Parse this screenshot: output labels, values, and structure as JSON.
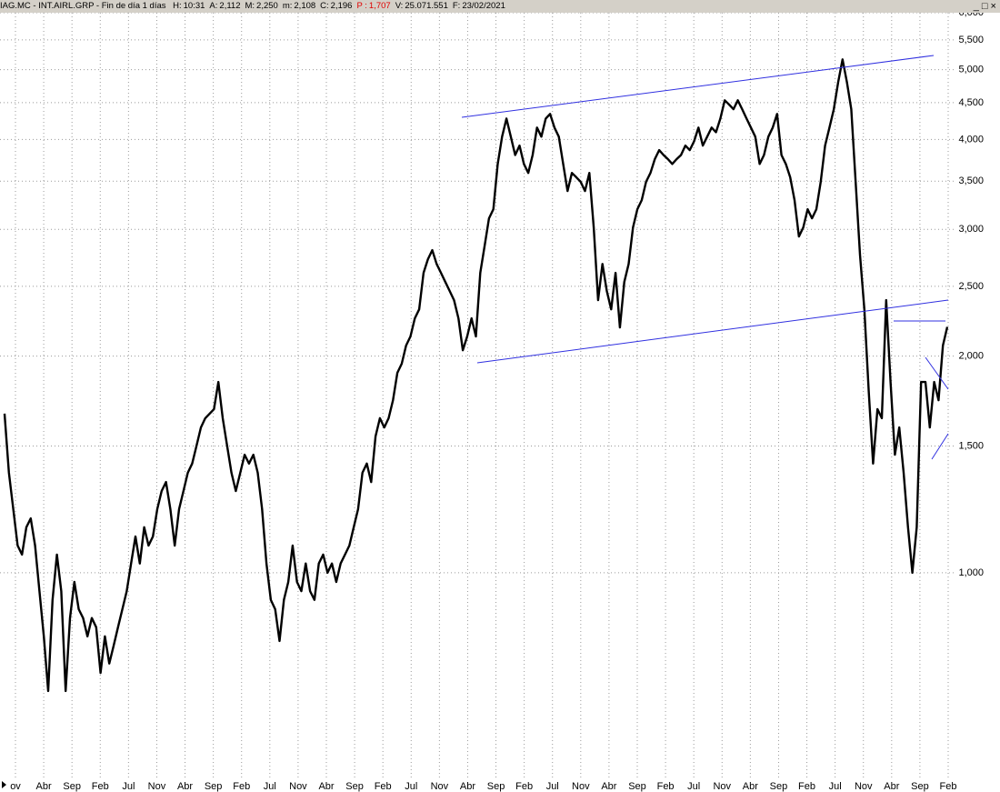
{
  "header": {
    "symbol": "IAG.MC - INT.AIRL.GRP - Fin de día 1 días",
    "fields": [
      {
        "label": "H:",
        "value": "10:31"
      },
      {
        "label": "A:",
        "value": "2,112"
      },
      {
        "label": "M:",
        "value": "2,250"
      },
      {
        "label": "m:",
        "value": "2,108"
      },
      {
        "label": "C:",
        "value": "2,196"
      },
      {
        "label": "P :",
        "value": "1,707",
        "color": "#e00000"
      },
      {
        "label": "V:",
        "value": "25.071.551"
      },
      {
        "label": "F:",
        "value": "23/02/2021"
      }
    ]
  },
  "chart_data": {
    "type": "line",
    "log_scale": true,
    "color": "#000000",
    "grid": true,
    "ylim": [
      515,
      6000
    ],
    "yticks": [
      {
        "value": 1000,
        "label": "1,000"
      },
      {
        "value": 1500,
        "label": "1,500"
      },
      {
        "value": 2000,
        "label": "2,000"
      },
      {
        "value": 2500,
        "label": "2,500"
      },
      {
        "value": 3000,
        "label": "3,000"
      },
      {
        "value": 3500,
        "label": "3,500"
      },
      {
        "value": 4000,
        "label": "4,000"
      },
      {
        "value": 4500,
        "label": "4,500"
      },
      {
        "value": 5000,
        "label": "5,000"
      },
      {
        "value": 5500,
        "label": "5,500"
      },
      {
        "value": 6000,
        "label": "6,000"
      }
    ],
    "xtick_labels": [
      "ov",
      "Abr",
      "Sep",
      "Feb",
      "Jul",
      "Nov",
      "Abr",
      "Sep",
      "Feb",
      "Jul",
      "Nov",
      "Abr",
      "Sep",
      "Feb",
      "Jul",
      "Nov",
      "Abr",
      "Sep",
      "Feb",
      "Jul",
      "Nov",
      "Abr",
      "Sep",
      "Feb",
      "Jul",
      "Nov",
      "Abr",
      "Sep",
      "Feb",
      "Jul",
      "Nov",
      "Abr",
      "Sep",
      "Feb"
    ],
    "values": [
      1664,
      1377,
      1226,
      1091,
      1060,
      1157,
      1190,
      1091,
      943,
      816,
      685,
      917,
      1060,
      943,
      685,
      865,
      971,
      890,
      865,
      816,
      865,
      840,
      726,
      816,
      748,
      792,
      840,
      890,
      943,
      1030,
      1123,
      1030,
      1157,
      1091,
      1123,
      1226,
      1299,
      1337,
      1226,
      1091,
      1226,
      1299,
      1377,
      1418,
      1502,
      1592,
      1640,
      1664,
      1688,
      1841,
      1640,
      1502,
      1377,
      1299,
      1377,
      1459,
      1418,
      1459,
      1377,
      1226,
      1030,
      917,
      890,
      804,
      917,
      971,
      1091,
      971,
      943,
      1030,
      943,
      917,
      1030,
      1060,
      1000,
      1030,
      971,
      1030,
      1060,
      1091,
      1157,
      1226,
      1377,
      1418,
      1337,
      1547,
      1640,
      1592,
      1640,
      1737,
      1896,
      1952,
      2069,
      2130,
      2257,
      2323,
      2610,
      2727,
      2807,
      2686,
      2610,
      2535,
      2463,
      2391,
      2257,
      2038,
      2130,
      2257,
      2130,
      2610,
      2847,
      3108,
      3200,
      3699,
      4036,
      4277,
      4036,
      3806,
      3922,
      3699,
      3594,
      3806,
      4155,
      4036,
      4277,
      4340,
      4155,
      4036,
      3699,
      3391,
      3594,
      3545,
      3494,
      3391,
      3594,
      3019,
      2392,
      2686,
      2463,
      2323,
      2610,
      2192,
      2535,
      2686,
      3019,
      3200,
      3294,
      3494,
      3594,
      3756,
      3866,
      3806,
      3756,
      3699,
      3756,
      3806,
      3922,
      3866,
      3977,
      4155,
      3922,
      4036,
      4155,
      4094,
      4277,
      4534,
      4472,
      4406,
      4534,
      4406,
      4277,
      4155,
      4036,
      3699,
      3806,
      4036,
      4155,
      4340,
      3806,
      3699,
      3545,
      3294,
      2932,
      3019,
      3200,
      3108,
      3200,
      3494,
      3922,
      4155,
      4406,
      4806,
      5168,
      4806,
      4406,
      3494,
      2766,
      2323,
      1788,
      1418,
      1688,
      1640,
      2392,
      1841,
      1459,
      1592,
      1377,
      1157,
      1000,
      1157,
      1841,
      1841,
      1592,
      1841,
      1737,
      2069,
      2196
    ]
  }
}
